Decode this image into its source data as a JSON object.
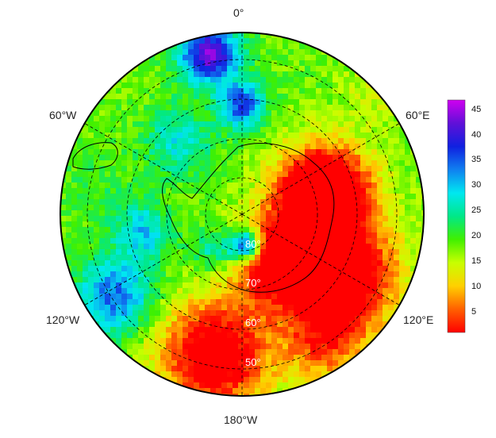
{
  "map": {
    "projection": "south-polar-stereographic",
    "longitude_labels": [
      "0°",
      "60°E",
      "120°E",
      "180°W",
      "120°W",
      "60°W"
    ],
    "latitude_labels": [
      "80°",
      "70°",
      "60°",
      "50°"
    ],
    "colorbar": {
      "ticks": [
        "5",
        "10",
        "15",
        "20",
        "25",
        "30",
        "35",
        "40",
        "45"
      ],
      "min": 1,
      "max": 47,
      "colors": [
        "#ff0000",
        "#ff6000",
        "#ffd000",
        "#c8ff00",
        "#40f000",
        "#00e888",
        "#00e8f0",
        "#1080f0",
        "#1020e0",
        "#6010d8",
        "#d000f0"
      ]
    },
    "colors": {
      "land_outline": "#000000",
      "grid": "#000000",
      "lat_label": "#ffffff"
    }
  }
}
